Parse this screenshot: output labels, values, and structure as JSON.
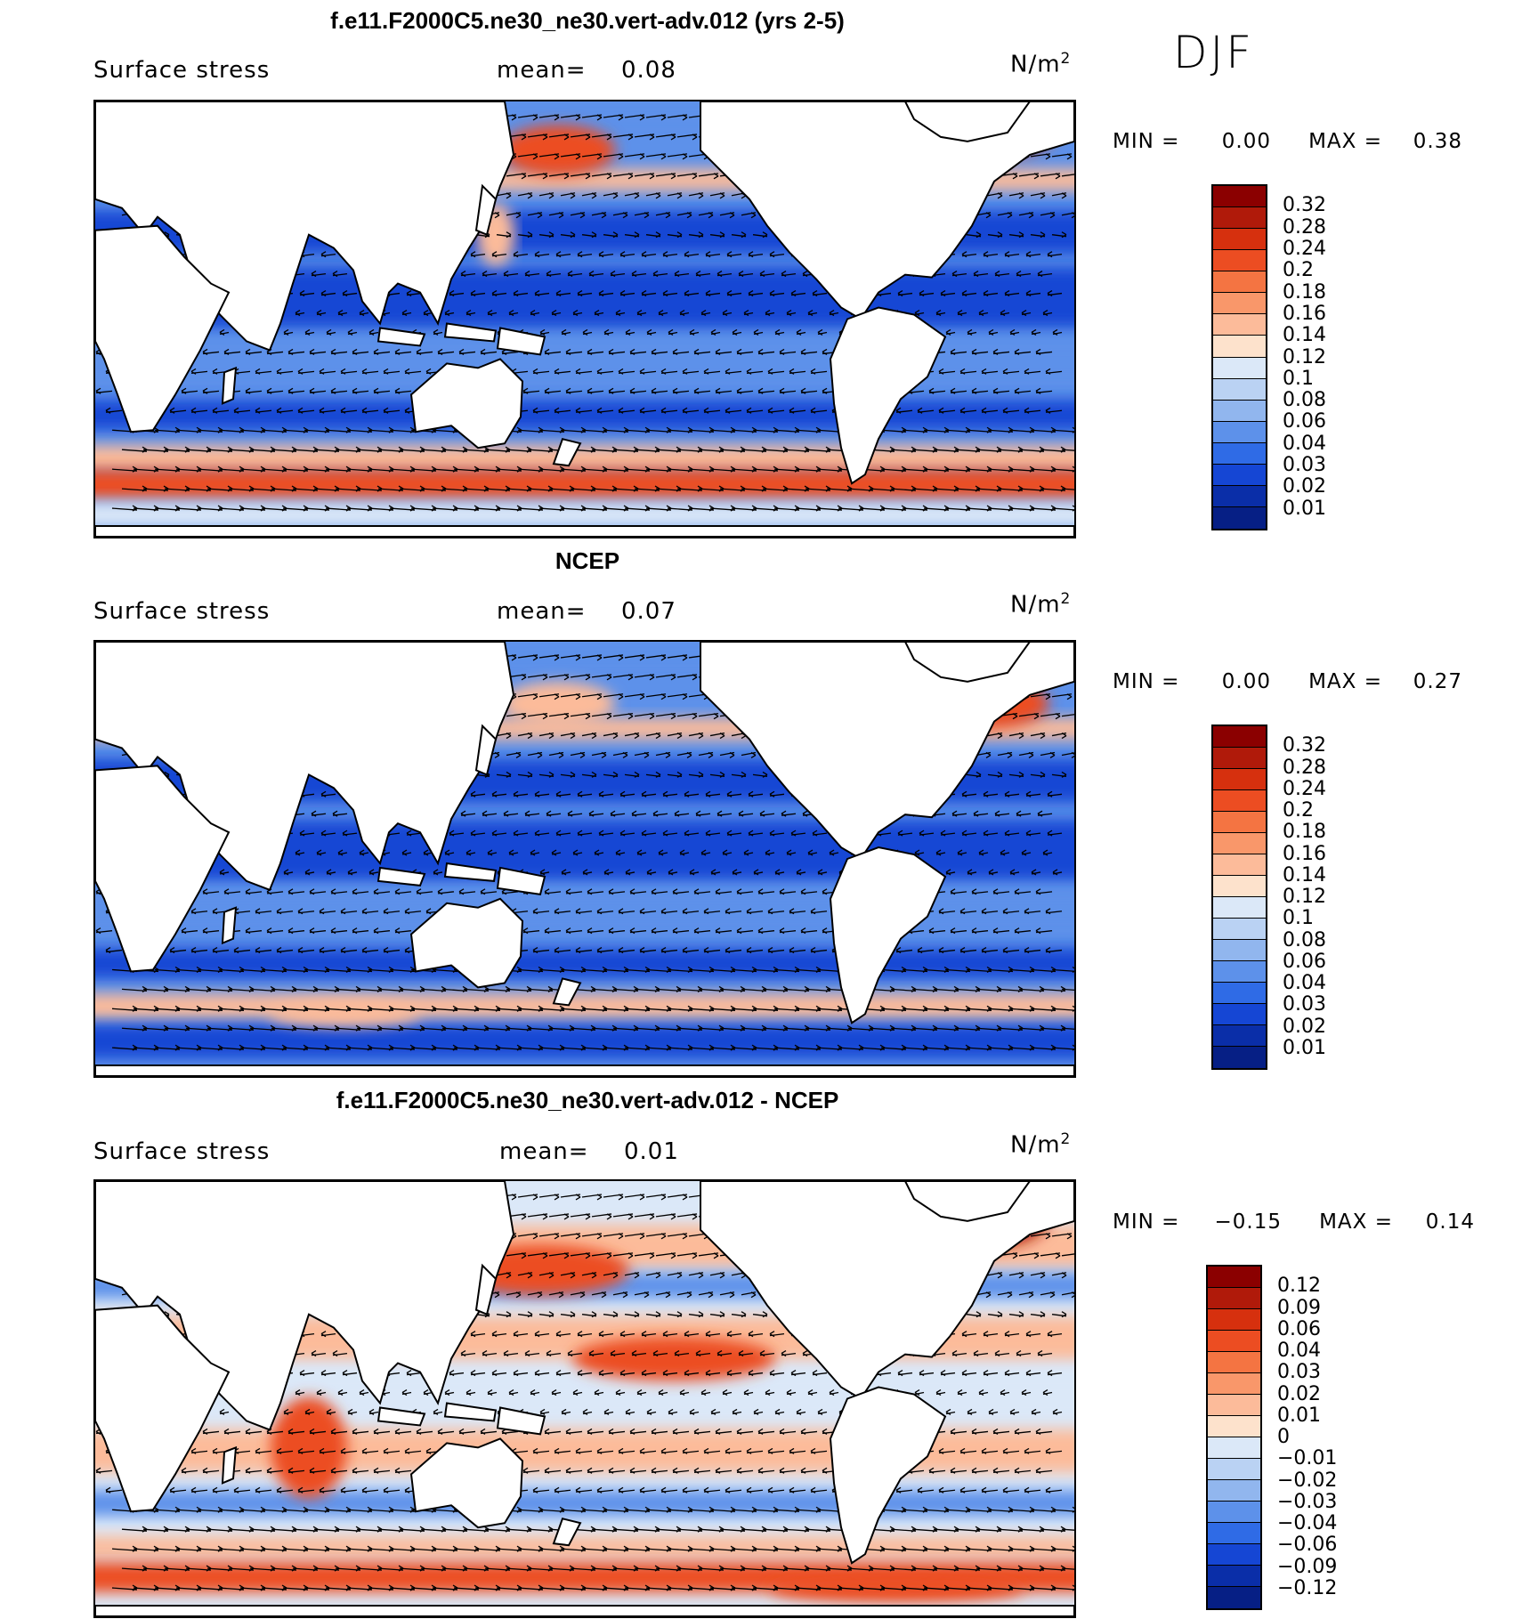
{
  "season": "DJF",
  "panels": [
    {
      "title": "f.e11.F2000C5.ne30_ne30.vert-adv.012 (yrs 2-5)",
      "variable": "Surface stress",
      "mean_label": "mean=",
      "mean_value": "0.08",
      "units_base": "N/m",
      "units_exp": "2",
      "min_label": "MIN =",
      "min_value": "0.00",
      "max_label": "MAX =",
      "max_value": "0.38",
      "levels": [
        "0.32",
        "0.28",
        "0.24",
        "0.2",
        "0.18",
        "0.16",
        "0.14",
        "0.12",
        "0.1",
        "0.08",
        "0.06",
        "0.04",
        "0.03",
        "0.02",
        "0.01"
      ],
      "colors": [
        "#8b0000",
        "#b01a0a",
        "#d6300e",
        "#ec4d22",
        "#f47442",
        "#f9976a",
        "#fcbb9a",
        "#fde2cc",
        "#dbe8f8",
        "#bad2f3",
        "#91b6ee",
        "#5d91ea",
        "#2f6be6",
        "#1546d4",
        "#0a2ea8",
        "#061f85"
      ]
    },
    {
      "title": "NCEP",
      "variable": "Surface stress",
      "mean_label": "mean=",
      "mean_value": "0.07",
      "units_base": "N/m",
      "units_exp": "2",
      "min_label": "MIN =",
      "min_value": "0.00",
      "max_label": "MAX =",
      "max_value": "0.27",
      "levels": [
        "0.32",
        "0.28",
        "0.24",
        "0.2",
        "0.18",
        "0.16",
        "0.14",
        "0.12",
        "0.1",
        "0.08",
        "0.06",
        "0.04",
        "0.03",
        "0.02",
        "0.01"
      ],
      "colors": [
        "#8b0000",
        "#b01a0a",
        "#d6300e",
        "#ec4d22",
        "#f47442",
        "#f9976a",
        "#fcbb9a",
        "#fde2cc",
        "#dbe8f8",
        "#bad2f3",
        "#91b6ee",
        "#5d91ea",
        "#2f6be6",
        "#1546d4",
        "#0a2ea8",
        "#061f85"
      ]
    },
    {
      "title": "f.e11.F2000C5.ne30_ne30.vert-adv.012 - NCEP",
      "variable": "Surface stress",
      "mean_label": "mean=",
      "mean_value": "0.01",
      "units_base": "N/m",
      "units_exp": "2",
      "min_label": "MIN =",
      "min_value": "−0.15",
      "max_label": "MAX =",
      "max_value": "0.14",
      "levels": [
        "0.12",
        "0.09",
        "0.06",
        "0.04",
        "0.03",
        "0.02",
        "0.01",
        "0",
        "−0.01",
        "−0.02",
        "−0.03",
        "−0.04",
        "−0.06",
        "−0.09",
        "−0.12"
      ],
      "colors": [
        "#8b0000",
        "#b01a0a",
        "#d6300e",
        "#ec4d22",
        "#f47442",
        "#f9976a",
        "#fcbb9a",
        "#fde2cc",
        "#dbe8f8",
        "#bad2f3",
        "#91b6ee",
        "#5d91ea",
        "#2f6be6",
        "#1546d4",
        "#0a2ea8",
        "#061f85"
      ]
    }
  ],
  "colors": {
    "ocean_low": "#1546d4",
    "ocean_mid": "#5d91ea",
    "ocean_pale": "#dbe8f8",
    "warm_pale": "#fcbb9a",
    "warm": "#ec4d22",
    "warm_dark": "#b01a0a",
    "land": "#ffffff"
  }
}
